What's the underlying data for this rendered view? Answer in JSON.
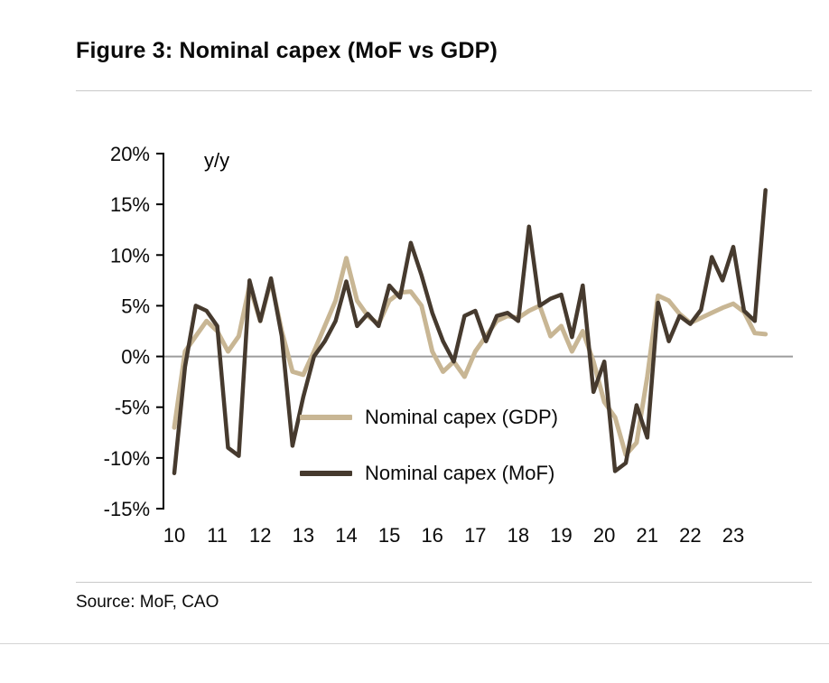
{
  "figure": {
    "title": "Figure 3: Nominal capex (MoF vs GDP)",
    "source": "Source: MoF, CAO"
  },
  "chart_data": {
    "type": "line",
    "title": "Nominal capex (MoF vs GDP)",
    "unit_label": "y/y",
    "ylim": [
      -15,
      20
    ],
    "ytick_step": 5,
    "yticks": [
      "20%",
      "15%",
      "10%",
      "5%",
      "0%",
      "-5%",
      "-10%",
      "-15%"
    ],
    "x_labels": [
      "10",
      "11",
      "12",
      "13",
      "14",
      "15",
      "16",
      "17",
      "18",
      "19",
      "20",
      "21",
      "22",
      "23"
    ],
    "x_frequency": "quarterly",
    "grid": "zero-line-only",
    "zero_line_color": "#9c9c9c",
    "legend_position": "inside-center-bottom",
    "series": [
      {
        "name": "Nominal capex (GDP)",
        "color": "#c8b694",
        "width": 5,
        "values": [
          -7.0,
          0.5,
          2.0,
          3.5,
          2.5,
          0.5,
          2.0,
          7.0,
          3.5,
          7.5,
          2.5,
          -1.5,
          -1.8,
          0.5,
          3.0,
          5.5,
          9.7,
          5.5,
          4.0,
          3.2,
          5.5,
          6.3,
          6.4,
          5.0,
          0.5,
          -1.5,
          -0.5,
          -2.0,
          0.5,
          2.0,
          3.5,
          4.0,
          3.8,
          4.5,
          5.0,
          2.0,
          3.0,
          0.5,
          2.5,
          -0.5,
          -4.5,
          -6.0,
          -9.7,
          -8.5,
          -2.0,
          6.0,
          5.5,
          4.2,
          3.3,
          3.8,
          4.3,
          4.8,
          5.2,
          4.4,
          2.3,
          2.2
        ]
      },
      {
        "name": "Nominal capex (MoF)",
        "color": "#463a2e",
        "width": 4.5,
        "values": [
          -11.5,
          -1.0,
          5.0,
          4.5,
          3.0,
          -9.0,
          -9.8,
          7.5,
          3.5,
          7.7,
          2.0,
          -8.8,
          -4.0,
          0.0,
          1.5,
          3.5,
          7.4,
          3.0,
          4.2,
          3.0,
          7.0,
          5.8,
          11.2,
          8.0,
          4.3,
          1.5,
          -0.5,
          4.0,
          4.5,
          1.5,
          4.0,
          4.3,
          3.5,
          12.8,
          5.0,
          5.7,
          6.1,
          1.9,
          7.0,
          -3.5,
          -0.5,
          -11.3,
          -10.5,
          -4.8,
          -8.0,
          5.3,
          1.5,
          4.0,
          3.2,
          4.6,
          9.8,
          7.5,
          10.8,
          4.5,
          3.5,
          16.4
        ]
      }
    ]
  }
}
